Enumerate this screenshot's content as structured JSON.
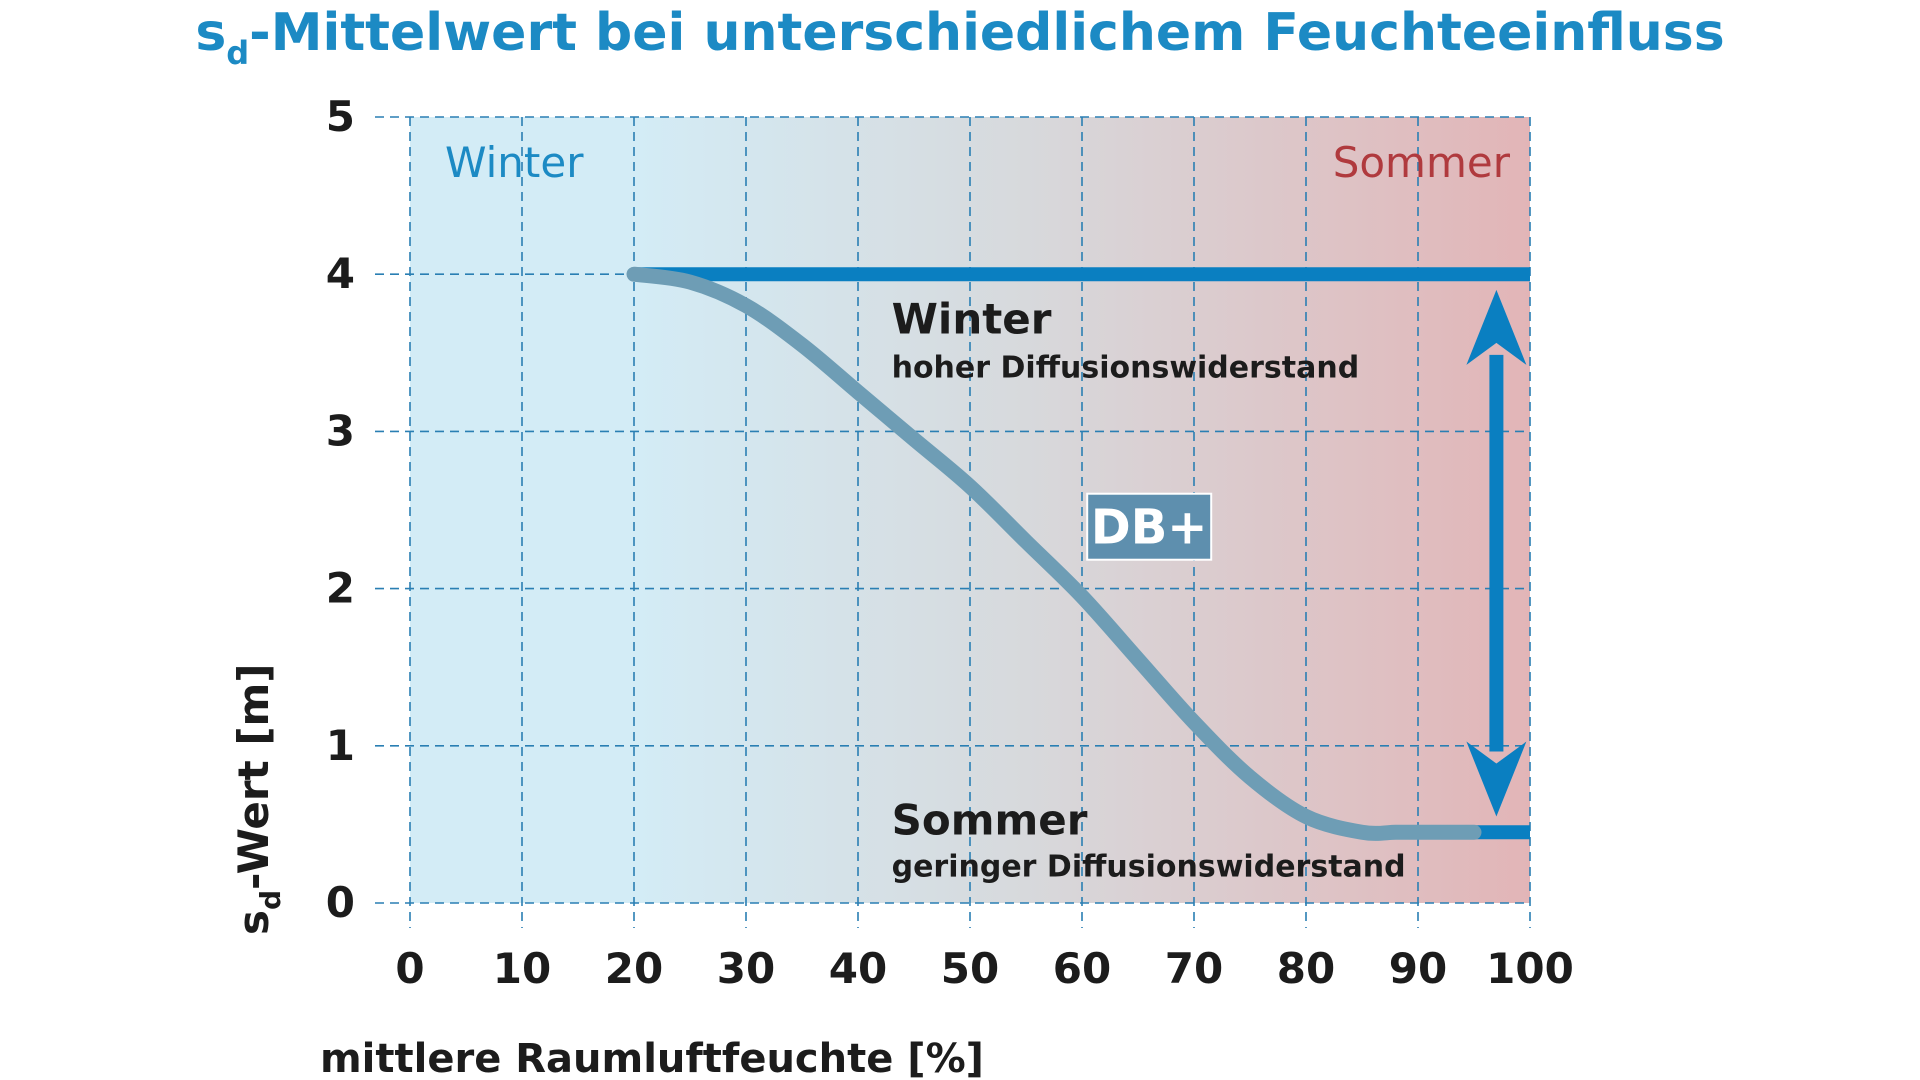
{
  "title": {
    "prefix": "s",
    "subscript": "d",
    "rest": "-Mittelwert bei unterschiedlichem Feuchteeinfluss"
  },
  "colors": {
    "title": "#1c8ac4",
    "accent_blue": "#0a7fc1",
    "curve": "#6e9db5",
    "winter_label": "#1c8ac4",
    "sommer_label": "#b03a3e",
    "bg_left": "#d3ecf6",
    "bg_mid": "#d7d9dc",
    "bg_right": "#e2b5b7",
    "grid": "#2a7fb3",
    "badge_bg": "#5e8fae"
  },
  "chart_data": {
    "type": "line",
    "title": "sd-Mittelwert bei unterschiedlichem Feuchteeinfluss",
    "xlabel": "mittlere Raumluftfeuchte [%]",
    "ylabel": {
      "prefix": "s",
      "subscript": "d",
      "rest": "-Wert [m]"
    },
    "xlim": [
      0,
      100
    ],
    "ylim": [
      0,
      5
    ],
    "xticks": [
      "0",
      "10",
      "20",
      "30",
      "40",
      "50",
      "60",
      "70",
      "80",
      "90",
      "100"
    ],
    "yticks": [
      "0",
      "1",
      "2",
      "3",
      "4",
      "5"
    ],
    "grid": true,
    "series": [
      {
        "name": "DB+",
        "x": [
          20,
          25,
          30,
          35,
          40,
          45,
          50,
          55,
          60,
          65,
          70,
          75,
          80,
          85,
          88,
          90,
          95
        ],
        "y": [
          4.0,
          3.95,
          3.8,
          3.55,
          3.25,
          2.95,
          2.65,
          2.3,
          1.95,
          1.55,
          1.15,
          0.8,
          0.55,
          0.45,
          0.45,
          0.45,
          0.45
        ]
      }
    ],
    "reference_lines": [
      {
        "y": 4.0,
        "x_start": 20,
        "x_end": 100
      },
      {
        "y": 0.45,
        "x_start": 95,
        "x_end": 100
      }
    ],
    "double_arrow": {
      "x": 97,
      "y_from": 3.9,
      "y_to": 0.55
    },
    "regions": [
      {
        "label": "Winter",
        "position": "top-left"
      },
      {
        "label": "Sommer",
        "position": "top-right"
      }
    ],
    "annotations": [
      {
        "title": "Winter",
        "subtitle": "hoher Diffusionswiderstand",
        "x": 43,
        "y": 3.7
      },
      {
        "title": "Sommer",
        "subtitle": "geringer Diffusionswiderstand",
        "x": 43,
        "y": 0.5
      }
    ],
    "badge": {
      "label": "DB+",
      "x": 61,
      "y": 2.4
    }
  }
}
